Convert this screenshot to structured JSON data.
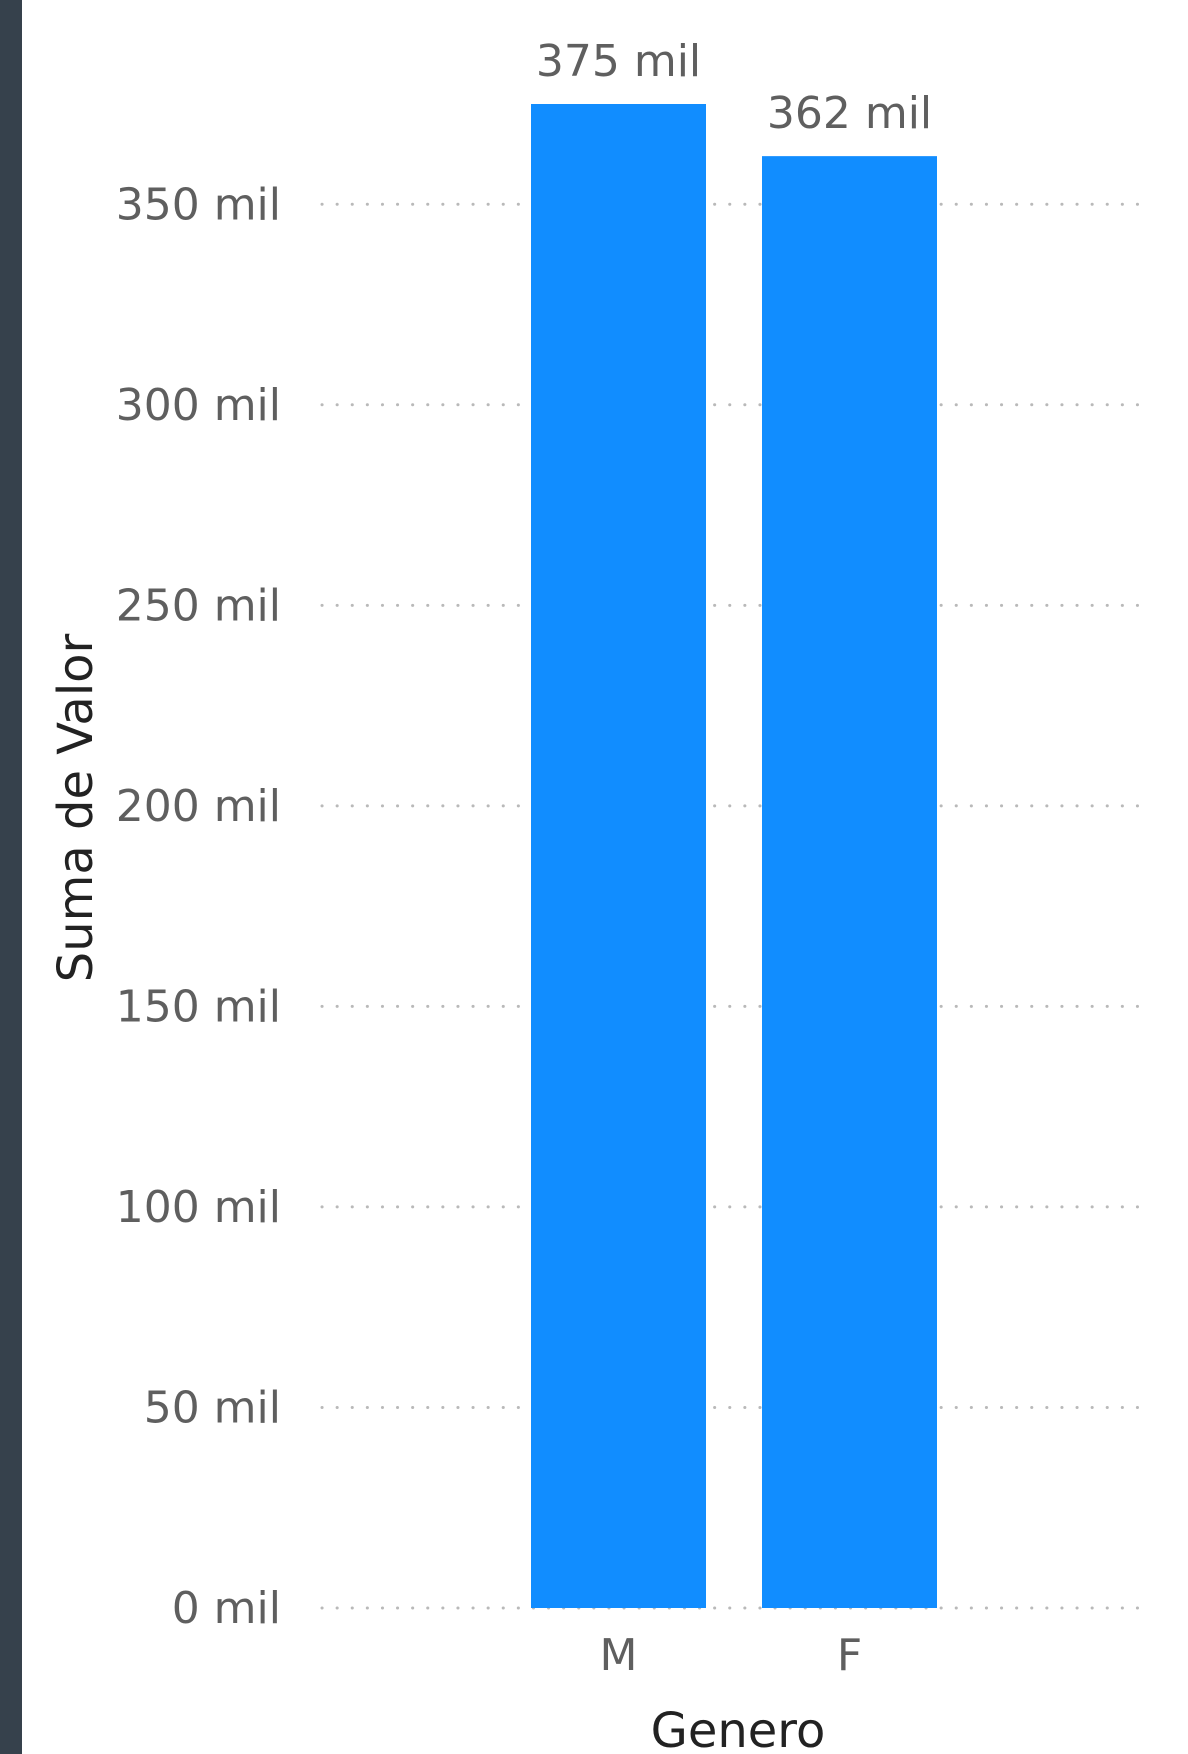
{
  "chart_data": {
    "type": "bar",
    "categories": [
      "M",
      "F"
    ],
    "values": [
      375,
      362
    ],
    "data_labels": [
      "375 mil",
      "362 mil"
    ],
    "xlabel": "Genero",
    "ylabel": "Suma de Valor",
    "ylim": [
      0,
      375
    ],
    "y_ticks": [
      0,
      50,
      100,
      150,
      200,
      250,
      300,
      350
    ],
    "y_tick_labels": [
      "0 mil",
      "50 mil",
      "100 mil",
      "150 mil",
      "200 mil",
      "250 mil",
      "300 mil",
      "350 mil"
    ],
    "grid": true,
    "bar_color": "#118dff"
  }
}
